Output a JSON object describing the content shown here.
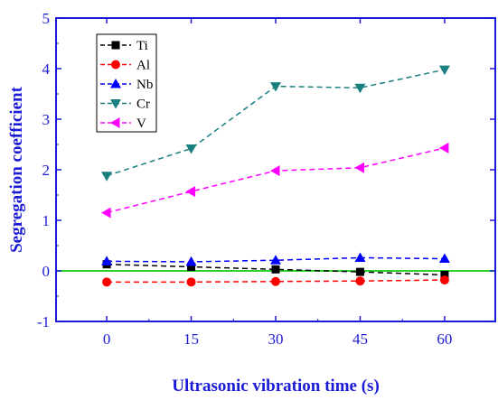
{
  "chart_data": {
    "type": "line",
    "xlabel": "Ultrasonic vibration time (s)",
    "ylabel": "Segregation coefficient",
    "x": [
      0,
      15,
      30,
      45,
      60
    ],
    "xlim": [
      -9,
      69
    ],
    "ylim": [
      -1,
      5
    ],
    "xticks": [
      "0",
      "15",
      "30",
      "45",
      "60"
    ],
    "yticks": [
      "-1",
      "0",
      "1",
      "2",
      "3",
      "4",
      "5"
    ],
    "reference_line": {
      "y": 0,
      "color": "#2bd12b"
    },
    "legend_position": "top-left",
    "series": [
      {
        "name": "Ti",
        "color": "#000000",
        "marker": "square",
        "values": [
          0.13,
          0.08,
          0.03,
          -0.02,
          -0.08
        ]
      },
      {
        "name": "Al",
        "color": "#ff0000",
        "marker": "circle",
        "values": [
          -0.22,
          -0.22,
          -0.21,
          -0.2,
          -0.18
        ]
      },
      {
        "name": "Nb",
        "color": "#0000ff",
        "marker": "triangle-up",
        "values": [
          0.19,
          0.18,
          0.21,
          0.26,
          0.24
        ]
      },
      {
        "name": "Cr",
        "color": "#1a7f7f",
        "marker": "triangle-down",
        "values": [
          1.88,
          2.42,
          3.65,
          3.62,
          3.98
        ]
      },
      {
        "name": "V",
        "color": "#ff00ff",
        "marker": "triangle-left",
        "values": [
          1.15,
          1.57,
          1.98,
          2.04,
          2.43
        ]
      }
    ]
  }
}
